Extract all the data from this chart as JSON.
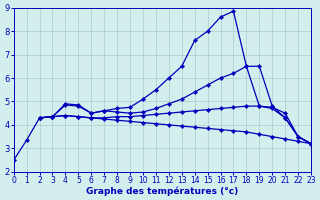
{
  "xlabel": "Graphe des températures (°c)",
  "background_color": "#d4eeee",
  "line_color": "#0000bb",
  "grid_color": "#a8cccc",
  "xlim": [
    0,
    23
  ],
  "ylim": [
    2,
    9
  ],
  "xticks": [
    0,
    1,
    2,
    3,
    4,
    5,
    6,
    7,
    8,
    9,
    10,
    11,
    12,
    13,
    14,
    15,
    16,
    17,
    18,
    19,
    20,
    21,
    22,
    23
  ],
  "yticks": [
    2,
    3,
    4,
    5,
    6,
    7,
    8,
    9
  ],
  "series": [
    {
      "x": [
        0,
        1,
        2,
        3,
        4,
        5,
        6,
        7,
        8,
        9,
        10,
        11,
        12,
        13,
        14,
        15,
        16,
        17,
        18,
        19,
        20,
        21,
        22,
        23
      ],
      "y": [
        2.5,
        3.35,
        4.3,
        4.35,
        4.4,
        4.35,
        4.3,
        4.25,
        4.2,
        4.15,
        4.1,
        4.05,
        4.0,
        3.95,
        3.9,
        3.85,
        3.8,
        3.75,
        3.7,
        3.6,
        3.5,
        3.4,
        3.3,
        3.2
      ]
    },
    {
      "x": [
        2,
        3,
        4,
        5,
        6,
        7,
        8,
        9,
        10,
        11,
        12,
        13,
        14,
        15,
        16,
        17,
        18,
        19,
        20,
        21,
        22,
        23
      ],
      "y": [
        4.3,
        4.35,
        4.4,
        4.35,
        4.3,
        4.3,
        4.35,
        4.35,
        4.4,
        4.45,
        4.5,
        4.55,
        4.6,
        4.65,
        4.7,
        4.75,
        4.8,
        4.8,
        4.75,
        4.5,
        3.5,
        3.2
      ]
    },
    {
      "x": [
        2,
        3,
        4,
        5,
        6,
        7,
        8,
        9,
        10,
        11,
        12,
        13,
        14,
        15,
        16,
        17,
        18,
        19,
        20,
        21,
        22,
        23
      ],
      "y": [
        4.3,
        4.35,
        4.9,
        4.85,
        4.5,
        4.6,
        4.55,
        4.5,
        4.55,
        4.7,
        4.9,
        5.1,
        5.4,
        5.7,
        6.0,
        6.2,
        6.5,
        6.5,
        4.8,
        4.3,
        3.5,
        3.2
      ]
    },
    {
      "x": [
        2,
        3,
        4,
        5,
        6,
        7,
        8,
        9,
        10,
        11,
        12,
        13,
        14,
        15,
        16,
        17,
        18,
        19,
        20,
        21,
        22,
        23
      ],
      "y": [
        4.3,
        4.35,
        4.85,
        4.8,
        4.5,
        4.6,
        4.7,
        4.75,
        5.1,
        5.5,
        6.0,
        6.5,
        7.6,
        8.0,
        8.6,
        8.85,
        6.5,
        4.8,
        4.7,
        4.3,
        3.5,
        3.2
      ]
    }
  ]
}
